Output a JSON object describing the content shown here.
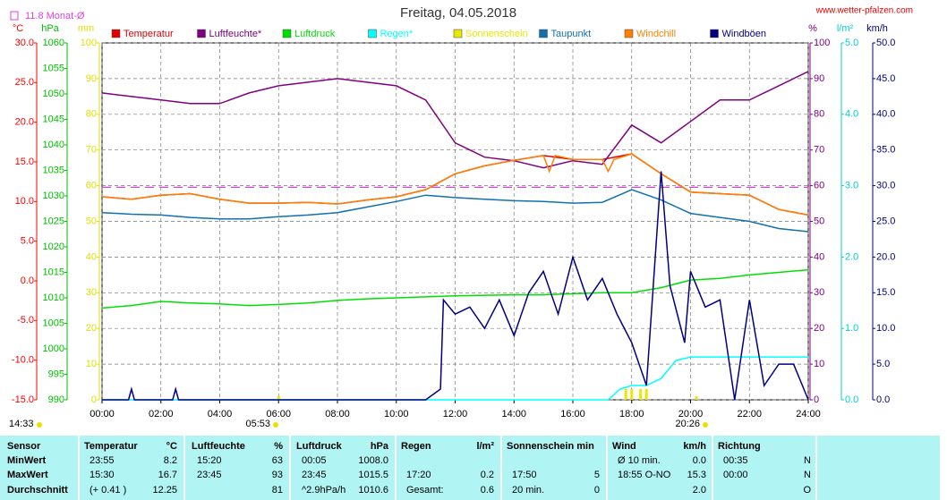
{
  "chart_data": {
    "type": "line",
    "title": "Freitag, 04.05.2018",
    "source": "www.wetter-pfalzen.com",
    "reference": {
      "label": "11.8 Monat-Ø",
      "value": 11.8,
      "axis": 0,
      "color": "#e040e0"
    },
    "updated": "14:33",
    "sunrise": "05:53",
    "sunset": "20:26",
    "xlim": [
      0,
      24
    ],
    "xticks": [
      {
        "value": 0,
        "label": "00:00"
      },
      {
        "value": 2,
        "label": "02:00"
      },
      {
        "value": 4,
        "label": "04:00"
      },
      {
        "value": 6,
        "label": "06:00"
      },
      {
        "value": 8,
        "label": "08:00"
      },
      {
        "value": 10,
        "label": "10:00"
      },
      {
        "value": 12,
        "label": "12:00"
      },
      {
        "value": 14,
        "label": "14:00"
      },
      {
        "value": 16,
        "label": "16:00"
      },
      {
        "value": 18,
        "label": "18:00"
      },
      {
        "value": 20,
        "label": "20:00"
      },
      {
        "value": 22,
        "label": "22:00"
      },
      {
        "value": 24,
        "label": "24:00"
      }
    ],
    "grid": true,
    "grid_axis": 3,
    "axes": [
      {
        "name": "°C",
        "color": "#ff0000",
        "lim": [
          -15,
          30
        ],
        "ticks": [
          {
            "value": -15,
            "label": "-15.0"
          },
          {
            "value": -10,
            "label": "-10.0"
          },
          {
            "value": -5,
            "label": "-5.0"
          },
          {
            "value": 0,
            "label": "0.0"
          },
          {
            "value": 5,
            "label": "5.0"
          },
          {
            "value": 10,
            "label": "10.0"
          },
          {
            "value": 15,
            "label": "15.0"
          },
          {
            "value": 20,
            "label": "20.0"
          },
          {
            "value": 25,
            "label": "25.0"
          },
          {
            "value": 30,
            "label": "30.0"
          }
        ]
      },
      {
        "name": "hPa",
        "color": "#00c000",
        "lim": [
          990,
          1060
        ],
        "ticks": [
          990,
          995,
          1000,
          1005,
          1010,
          1015,
          1020,
          1025,
          1030,
          1035,
          1040,
          1045,
          1050,
          1055,
          1060
        ]
      },
      {
        "name": "mm",
        "color": "#e0e000",
        "lim": [
          0,
          100
        ],
        "ticks": [
          0,
          10,
          20,
          30,
          40,
          50,
          60,
          70,
          80,
          90,
          100
        ]
      },
      {
        "name": "%",
        "color": "#800080",
        "lim": [
          0,
          100
        ],
        "ticks": [
          0,
          10,
          20,
          30,
          40,
          50,
          60,
          70,
          80,
          90,
          100
        ]
      },
      {
        "name": "l/m²",
        "color": "#00d0d0",
        "lim": [
          0,
          5
        ],
        "ticks": [
          {
            "value": 0,
            "label": "0.0"
          },
          {
            "value": 1,
            "label": "1.0"
          },
          {
            "value": 2,
            "label": "2.0"
          },
          {
            "value": 3,
            "label": "3.0"
          },
          {
            "value": 4,
            "label": "4.0"
          },
          {
            "value": 5,
            "label": "5.0"
          }
        ]
      },
      {
        "name": "km/h",
        "color": "#000080",
        "lim": [
          0,
          50
        ],
        "ticks": [
          {
            "value": 0,
            "label": "0.0"
          },
          {
            "value": 5,
            "label": "5.0"
          },
          {
            "value": 10,
            "label": "10.0"
          },
          {
            "value": 15,
            "label": "15.0"
          },
          {
            "value": 20,
            "label": "20.0"
          },
          {
            "value": 25,
            "label": "25.0"
          },
          {
            "value": 30,
            "label": "30.0"
          },
          {
            "value": 35,
            "label": "35.0"
          },
          {
            "value": 40,
            "label": "40.0"
          },
          {
            "value": 45,
            "label": "45.0"
          },
          {
            "value": 50,
            "label": "50.0"
          }
        ]
      }
    ],
    "series": [
      {
        "name": "Temperatur",
        "color": "#e00000",
        "axis": 0,
        "type": "line",
        "x": [
          0,
          1,
          2,
          3,
          4,
          5,
          6,
          7,
          8,
          9,
          10,
          11,
          12,
          13,
          14,
          15,
          16,
          17,
          18,
          19,
          20,
          21,
          22,
          23,
          24
        ],
        "values": [
          10.6,
          10.3,
          10.8,
          11.0,
          10.3,
          9.8,
          9.8,
          9.9,
          9.7,
          10.2,
          10.6,
          11.5,
          13.5,
          14.5,
          15.2,
          15.8,
          15.3,
          15.3,
          16.0,
          13.5,
          11.2,
          11.0,
          10.8,
          9.0,
          8.3
        ]
      },
      {
        "name": "Luftfeuchte*",
        "color": "#800080",
        "axis": 3,
        "type": "line",
        "x": [
          0,
          1,
          2,
          3,
          4,
          5,
          6,
          7,
          8,
          9,
          10,
          11,
          12,
          13,
          14,
          15,
          16,
          17,
          18,
          19,
          20,
          21,
          22,
          23,
          24
        ],
        "values": [
          86,
          85,
          84,
          83,
          83,
          86,
          88,
          89,
          90,
          89,
          88,
          84,
          72,
          68,
          67,
          65,
          67,
          66,
          77,
          72,
          78,
          84,
          84,
          88,
          92
        ]
      },
      {
        "name": "Luftdruck",
        "color": "#00e000",
        "axis": 1,
        "type": "line",
        "x": [
          0,
          1,
          2,
          3,
          4,
          5,
          6,
          7,
          8,
          9,
          10,
          11,
          12,
          13,
          14,
          15,
          16,
          17,
          18,
          19,
          20,
          21,
          22,
          23,
          24
        ],
        "values": [
          1008.0,
          1008.5,
          1009.3,
          1009.0,
          1008.8,
          1008.5,
          1008.7,
          1009.0,
          1009.5,
          1009.8,
          1010.0,
          1010.2,
          1010.4,
          1010.5,
          1010.6,
          1010.6,
          1010.8,
          1011.0,
          1011.0,
          1012.0,
          1013.5,
          1013.8,
          1014.5,
          1015.0,
          1015.5
        ]
      },
      {
        "name": "Regen*",
        "color": "#00ffff",
        "axis": 4,
        "type": "line",
        "x": [
          0,
          17.2,
          17.6,
          18,
          18.5,
          19,
          19.5,
          20,
          24
        ],
        "values": [
          0,
          0,
          0.15,
          0.2,
          0.2,
          0.3,
          0.55,
          0.6,
          0.6
        ]
      },
      {
        "name": "Sonnenschein",
        "color": "#e8e800",
        "axis": 2,
        "type": "bar",
        "x": [
          6,
          17.8,
          18,
          18.3,
          18.5,
          20.2
        ],
        "values": [
          1,
          3,
          3,
          3,
          3,
          1
        ]
      },
      {
        "name": "Taupunkt",
        "color": "#1070b0",
        "axis": 0,
        "type": "line",
        "x": [
          0,
          1,
          2,
          3,
          4,
          5,
          6,
          7,
          8,
          9,
          10,
          11,
          12,
          13,
          14,
          15,
          16,
          17,
          18,
          19,
          20,
          21,
          22,
          23,
          24
        ],
        "values": [
          8.6,
          8.4,
          8.3,
          8.0,
          7.8,
          7.8,
          8.1,
          8.3,
          8.6,
          9.3,
          10.0,
          10.8,
          10.5,
          10.3,
          10.1,
          10.0,
          9.8,
          9.9,
          11.5,
          10.2,
          8.5,
          8.0,
          7.5,
          6.6,
          6.2
        ]
      },
      {
        "name": "Windchill",
        "color": "#ff8000",
        "axis": 0,
        "type": "line",
        "x": [
          0,
          1,
          2,
          3,
          4,
          5,
          6,
          7,
          8,
          9,
          10,
          11,
          12,
          13,
          14,
          15,
          15.2,
          15.4,
          16,
          17,
          17.2,
          17.4,
          18,
          19,
          20,
          21,
          22,
          23,
          24
        ],
        "values": [
          10.6,
          10.3,
          10.8,
          11.0,
          10.3,
          9.8,
          9.8,
          9.9,
          9.7,
          10.2,
          10.6,
          11.5,
          13.5,
          14.5,
          15.2,
          15.8,
          13.8,
          15.8,
          15.3,
          15.3,
          13.8,
          15.3,
          16.0,
          13.5,
          11.2,
          11.0,
          10.8,
          9.0,
          8.3
        ]
      },
      {
        "name": "Windböen",
        "color": "#000080",
        "axis": 5,
        "type": "line",
        "x": [
          0,
          0.9,
          1,
          1.1,
          2.4,
          2.5,
          2.6,
          11,
          11.5,
          11.6,
          12,
          12.5,
          13,
          13.5,
          14,
          14.5,
          15,
          15.5,
          16,
          16.5,
          17,
          17.5,
          18,
          18.5,
          19,
          19.3,
          19.8,
          20,
          20.5,
          21,
          21.5,
          22,
          22.5,
          23,
          23.5,
          24
        ],
        "values": [
          0,
          0,
          1.5,
          0,
          0,
          1.5,
          0,
          0,
          1.5,
          14,
          12,
          13,
          10,
          14,
          9,
          15,
          18,
          12,
          20,
          14,
          17,
          12,
          8,
          2,
          32,
          16,
          8,
          18,
          13,
          14,
          0,
          14,
          2,
          5,
          5,
          0
        ]
      }
    ]
  },
  "table": {
    "header": [
      [
        "Sensor",
        null
      ],
      [
        "Temperatur",
        "°C"
      ],
      [
        "Luftfeuchte",
        "%"
      ],
      [
        "Luftdruck",
        "hPa"
      ],
      [
        "Regen",
        "l/m²"
      ],
      [
        "Sonnenschein min",
        null
      ],
      [
        "Wind",
        "km/h"
      ],
      [
        "Richtung",
        null
      ]
    ],
    "rows": [
      {
        "label": "MinWert",
        "cells": [
          [
            "23:55",
            "8.2"
          ],
          [
            "15:20",
            "63"
          ],
          [
            "00:05",
            "1008.0"
          ],
          [
            null,
            null
          ],
          [
            null,
            null
          ],
          [
            "Ø 10 min.",
            "0.0"
          ],
          [
            "00:35",
            "N"
          ]
        ]
      },
      {
        "label": "MaxWert",
        "cells": [
          [
            "15:30",
            "16.7"
          ],
          [
            "23:45",
            "93"
          ],
          [
            "23:45",
            "1015.5"
          ],
          [
            "17:20",
            "0.2"
          ],
          [
            "17:50",
            "5"
          ],
          [
            "18:55     O-NO",
            "15.3"
          ],
          [
            "00:00",
            "N"
          ]
        ]
      },
      {
        "label": "Durchschnitt",
        "cells": [
          [
            "(+ 0.41 )",
            "12.25"
          ],
          [
            null,
            "81"
          ],
          [
            "^2.9hPa/h",
            "1010.6"
          ],
          [
            "Gesamt:",
            "0.6"
          ],
          [
            "20 min.",
            "0"
          ],
          [
            null,
            "2.0"
          ],
          [
            null,
            "O"
          ]
        ]
      }
    ]
  }
}
